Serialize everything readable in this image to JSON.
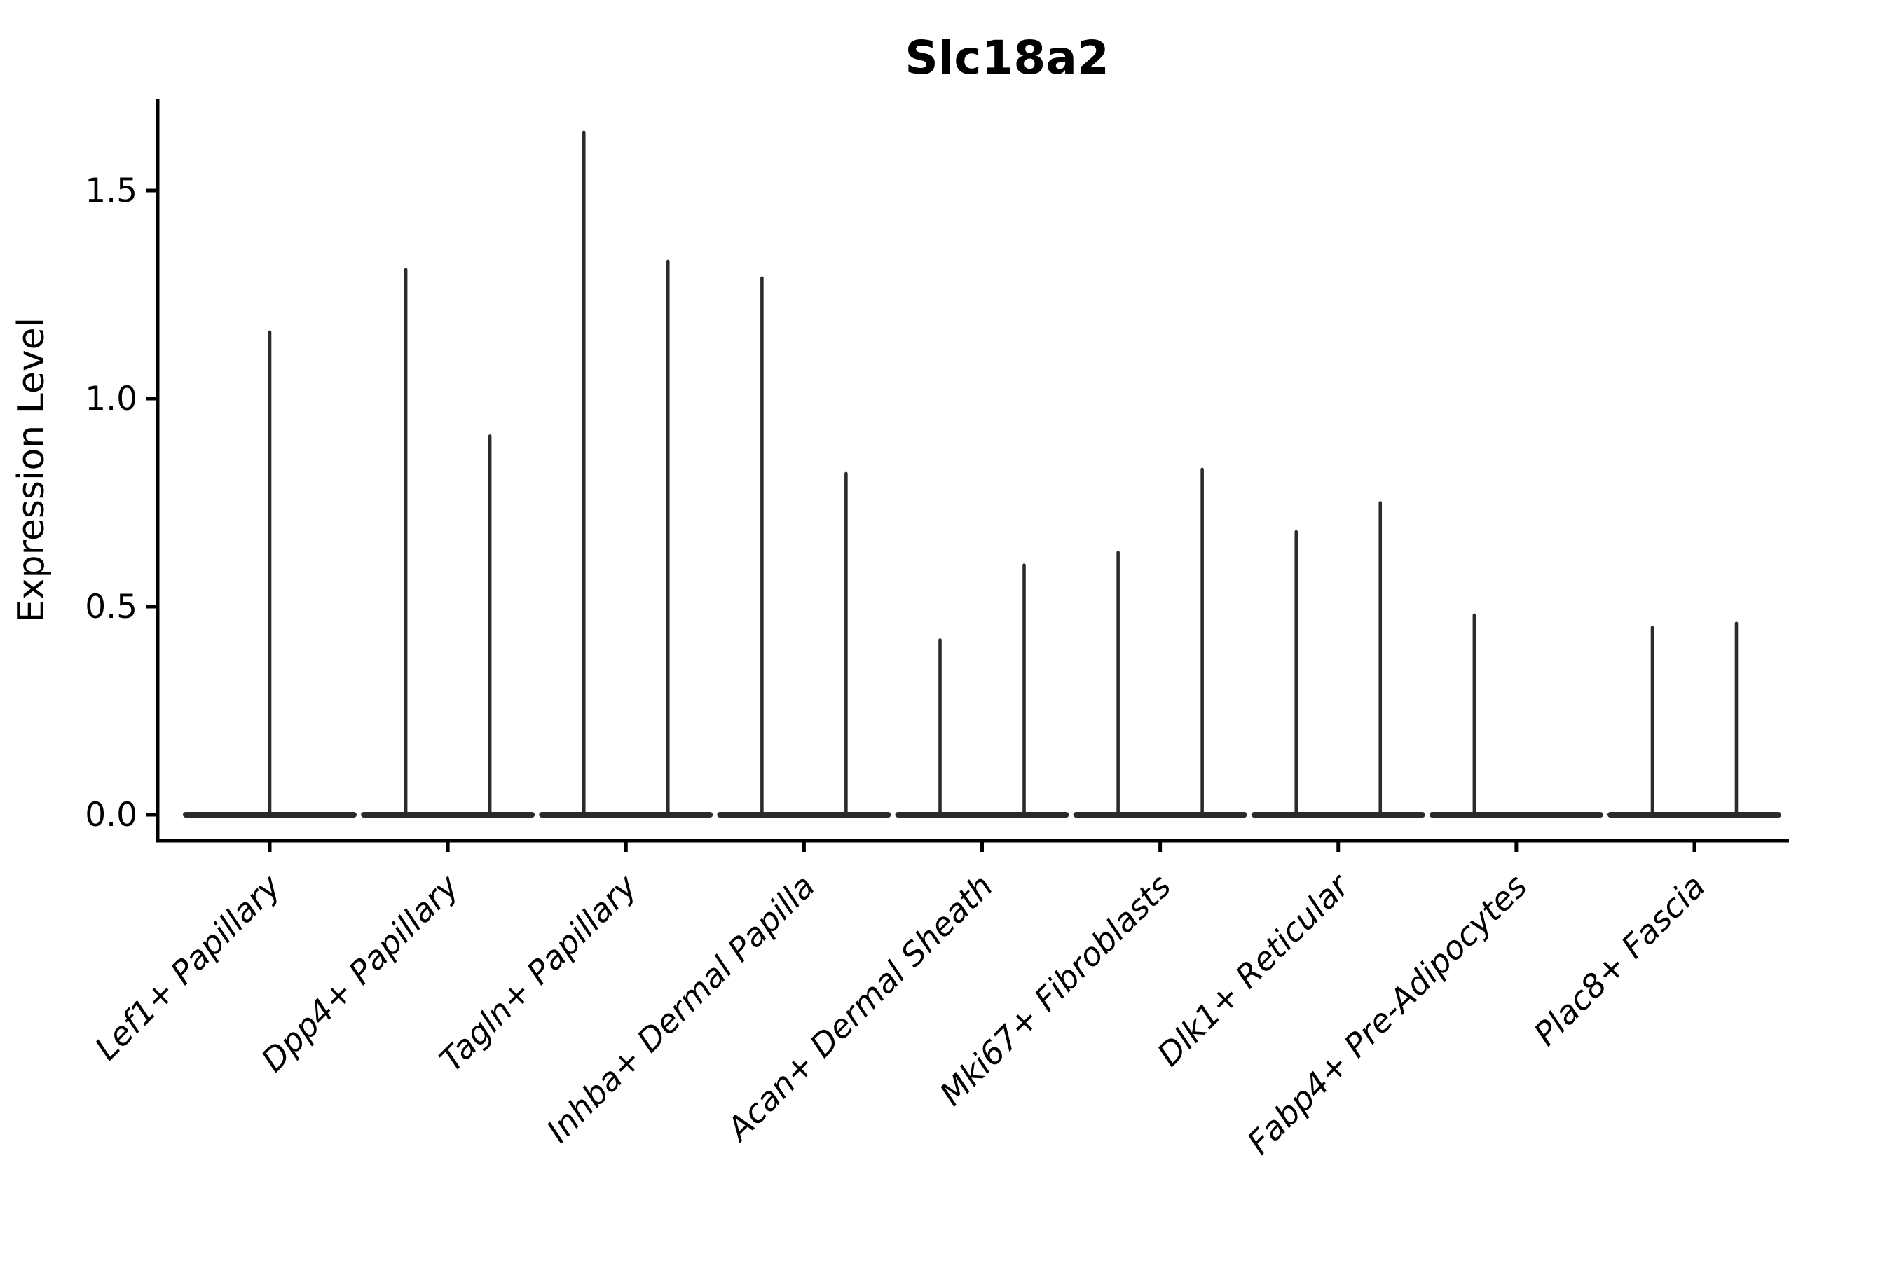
{
  "figure": {
    "background_color": "#ffffff"
  },
  "chart_data": {
    "type": "violin",
    "title": "Slc18a2",
    "xlabel": "",
    "ylabel": "Expression Level",
    "ylim": [
      0,
      1.73
    ],
    "yticks": [
      "0.0",
      "0.5",
      "1.0",
      "1.5"
    ],
    "ytick_values": [
      0.0,
      0.5,
      1.0,
      1.5
    ],
    "grid": false,
    "legend": null,
    "axes_style": "left and bottom spines only, ticks pointing outward",
    "style": {
      "violin_color": "#2b2b2b",
      "axis_color": "#000000",
      "background": "#ffffff"
    },
    "categories": [
      "Lef1+ Papillary",
      "Dpp4+ Papillary",
      "Tagln+ Papillary",
      "Inhba+ Dermal Papilla",
      "Acan+ Dermal Sheath",
      "Mki67+ Fibroblasts",
      "Dlk1+ Reticular",
      "Fabp4+ Pre-Adipocytes",
      "Plac8+ Fascia"
    ],
    "violins": [
      {
        "category": "Lef1+ Papillary",
        "sub_violins": [
          {
            "slot": "full",
            "max_expression": 1.16
          }
        ]
      },
      {
        "category": "Dpp4+ Papillary",
        "sub_violins": [
          {
            "slot": "left",
            "max_expression": 1.31
          },
          {
            "slot": "right",
            "max_expression": 0.91
          }
        ]
      },
      {
        "category": "Tagln+ Papillary",
        "sub_violins": [
          {
            "slot": "left",
            "max_expression": 1.64
          },
          {
            "slot": "right",
            "max_expression": 1.33
          }
        ]
      },
      {
        "category": "Inhba+ Dermal Papilla",
        "sub_violins": [
          {
            "slot": "left",
            "max_expression": 1.29
          },
          {
            "slot": "right",
            "max_expression": 0.82
          }
        ]
      },
      {
        "category": "Acan+ Dermal Sheath",
        "sub_violins": [
          {
            "slot": "left",
            "max_expression": 0.42
          },
          {
            "slot": "right",
            "max_expression": 0.6
          }
        ]
      },
      {
        "category": "Mki67+ Fibroblasts",
        "sub_violins": [
          {
            "slot": "left",
            "max_expression": 0.63
          },
          {
            "slot": "right",
            "max_expression": 0.83
          }
        ]
      },
      {
        "category": "Dlk1+ Reticular",
        "sub_violins": [
          {
            "slot": "left",
            "max_expression": 0.68
          },
          {
            "slot": "right",
            "max_expression": 0.75
          }
        ]
      },
      {
        "category": "Fabp4+ Pre-Adipocytes",
        "sub_violins": [
          {
            "slot": "left",
            "max_expression": 0.48
          },
          {
            "slot": "right",
            "max_expression": 0.0
          }
        ]
      },
      {
        "category": "Plac8+ Fascia",
        "sub_violins": [
          {
            "slot": "left",
            "max_expression": 0.45
          },
          {
            "slot": "right",
            "max_expression": 0.46
          }
        ]
      }
    ]
  }
}
